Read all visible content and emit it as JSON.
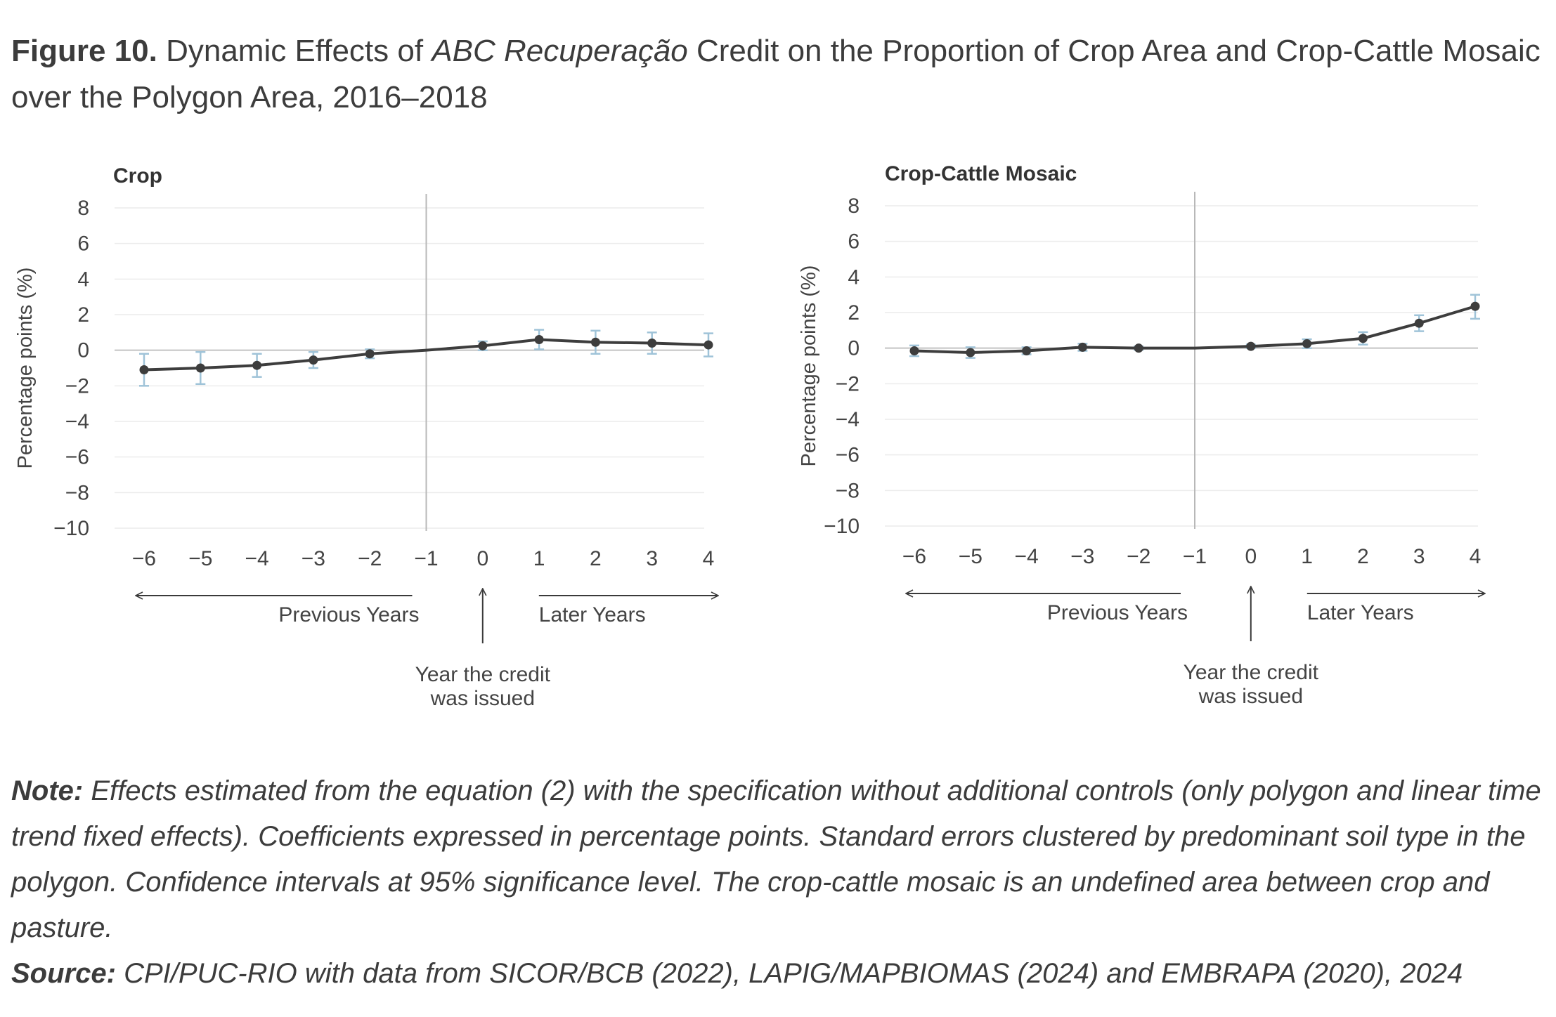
{
  "figure": {
    "label": "Figure 10.",
    "title_pre": "Dynamic Effects of",
    "title_italic": "ABC Recuperação",
    "title_post": "Credit on the Proportion of Crop Area and Crop-Cattle Mosaic over the Polygon Area, 2016–2018"
  },
  "annotations": {
    "previous_years": "Previous Years",
    "later_years": "Later Years",
    "credit_line1": "Year the credit",
    "credit_line2": "was issued"
  },
  "chart_data": [
    {
      "type": "line",
      "title": "Crop",
      "ylabel": "Percentage points (%)",
      "ylim": [
        -10,
        8
      ],
      "yticks": [
        8,
        6,
        4,
        2,
        0,
        -2,
        -4,
        -6,
        -8,
        -10
      ],
      "ytick_labels": [
        "8",
        "6",
        "4",
        "2",
        "0",
        "−2",
        "−4",
        "−6",
        "−8",
        "−10"
      ],
      "x": [
        -6,
        -5,
        -4,
        -3,
        -2,
        -1,
        0,
        1,
        2,
        3,
        4
      ],
      "x_labels": [
        "−6",
        "−5",
        "−4",
        "−3",
        "−2",
        "−1",
        "0",
        "1",
        "2",
        "3",
        "4"
      ],
      "reference_x": -1,
      "grid": true,
      "series": [
        {
          "values": [
            -1.1,
            -1.0,
            -0.85,
            -0.55,
            -0.2,
            0,
            0.25,
            0.6,
            0.45,
            0.4,
            0.3
          ],
          "ci_low": [
            -2.0,
            -1.9,
            -1.5,
            -1.0,
            -0.45,
            null,
            0.0,
            0.05,
            -0.2,
            -0.2,
            -0.35
          ],
          "ci_high": [
            -0.2,
            -0.1,
            -0.2,
            -0.1,
            0.05,
            null,
            0.5,
            1.15,
            1.1,
            1.0,
            0.95
          ]
        }
      ]
    },
    {
      "type": "line",
      "title": "Crop-Cattle Mosaic",
      "ylabel": "Percentage points (%)",
      "ylim": [
        -10,
        8
      ],
      "yticks": [
        8,
        6,
        4,
        2,
        0,
        -2,
        -4,
        -6,
        -8,
        -10
      ],
      "ytick_labels": [
        "8",
        "6",
        "4",
        "2",
        "0",
        "−2",
        "−4",
        "−6",
        "−8",
        "−10"
      ],
      "x": [
        -6,
        -5,
        -4,
        -3,
        -2,
        -1,
        0,
        1,
        2,
        3,
        4
      ],
      "x_labels": [
        "−6",
        "−5",
        "−4",
        "−3",
        "−2",
        "−1",
        "0",
        "1",
        "2",
        "3",
        "4"
      ],
      "reference_x": -1,
      "grid": true,
      "series": [
        {
          "values": [
            -0.15,
            -0.25,
            -0.15,
            0.05,
            0.0,
            0,
            0.1,
            0.25,
            0.55,
            1.4,
            2.35
          ],
          "ci_low": [
            -0.45,
            -0.55,
            -0.35,
            -0.15,
            -0.1,
            null,
            0.0,
            0.0,
            0.2,
            0.95,
            1.65
          ],
          "ci_high": [
            0.15,
            0.05,
            0.05,
            0.25,
            0.1,
            null,
            0.2,
            0.5,
            0.9,
            1.85,
            3.0
          ]
        }
      ]
    }
  ],
  "note": {
    "label": "Note:",
    "text": "Effects estimated from the equation (2) with the specification without additional controls (only polygon and linear time trend fixed effects). Coefficients expressed in percentage points. Standard errors clustered by predominant soil type in the polygon. Confidence intervals at 95% significance level. The crop-cattle mosaic is an undefined area between crop and pasture."
  },
  "source": {
    "label": "Source:",
    "text": "CPI/PUC-RIO with data from SICOR/BCB (2022), LAPIG/MAPBIOMAS (2024) and EMBRAPA (2020), 2024"
  }
}
